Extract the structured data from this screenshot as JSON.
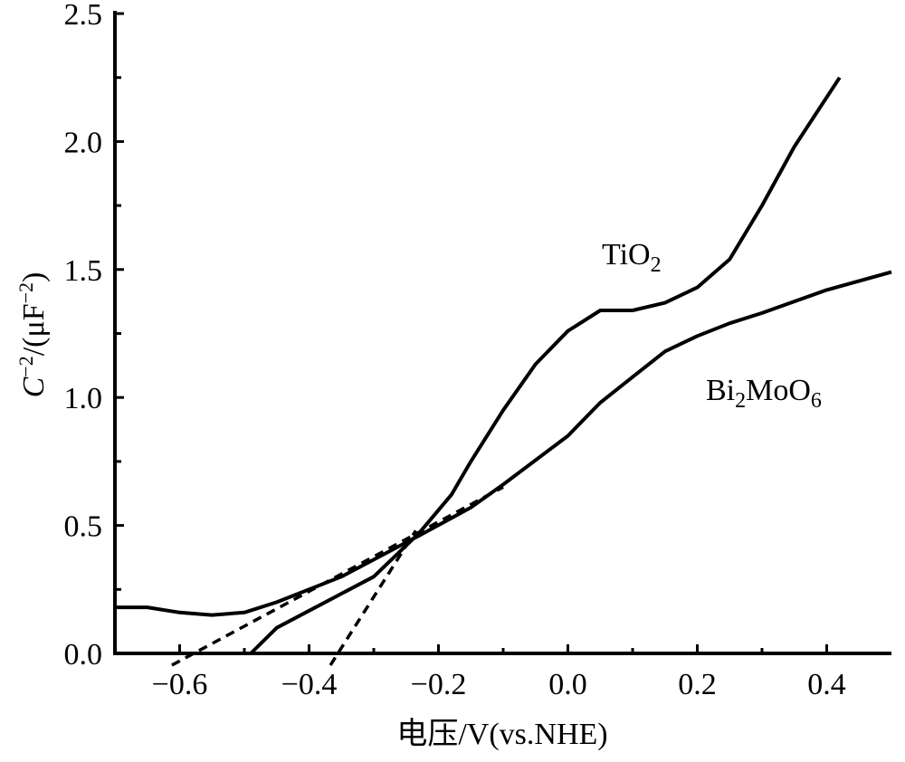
{
  "chart_data": {
    "type": "line",
    "title": "",
    "xlabel": "电压/V(vs.NHE)",
    "ylabel_parts": {
      "base": "C",
      "exp1": "−2",
      "mid": "/(μF",
      "exp2": "−2",
      "end": ")"
    },
    "ylabel": "C−2/(μF−2)",
    "xlim": [
      -0.7,
      0.5
    ],
    "ylim": [
      0,
      2.5
    ],
    "xticks": [
      -0.6,
      -0.4,
      -0.2,
      0.0,
      0.2,
      0.4
    ],
    "xtick_labels": [
      "−0.6",
      "−0.4",
      "−0.2",
      "0.0",
      "0.2",
      "0.4"
    ],
    "yticks": [
      0.0,
      0.5,
      1.0,
      1.5,
      2.0,
      2.5
    ],
    "ytick_labels": [
      "0.0",
      "0.5",
      "1.0",
      "1.5",
      "2.0",
      "2.5"
    ],
    "grid": false,
    "series": [
      {
        "name": "TiO2",
        "label_base": "TiO",
        "label_sub": "2",
        "style": "solid",
        "x": [
          -0.49,
          -0.45,
          -0.3,
          -0.23,
          -0.18,
          -0.15,
          -0.1,
          -0.05,
          0.0,
          0.05,
          0.1,
          0.15,
          0.2,
          0.25,
          0.3,
          0.35,
          0.42
        ],
        "y": [
          0.0,
          0.1,
          0.3,
          0.47,
          0.62,
          0.75,
          0.95,
          1.13,
          1.26,
          1.34,
          1.34,
          1.37,
          1.43,
          1.54,
          1.75,
          1.98,
          2.25
        ]
      },
      {
        "name": "Bi2MoO6",
        "label_parts": [
          "Bi",
          "2",
          "MoO",
          "6"
        ],
        "style": "solid",
        "x": [
          -0.7,
          -0.65,
          -0.6,
          -0.55,
          -0.5,
          -0.45,
          -0.35,
          -0.23,
          -0.15,
          -0.1,
          0.0,
          0.05,
          0.1,
          0.15,
          0.2,
          0.25,
          0.3,
          0.4,
          0.5
        ],
        "y": [
          0.18,
          0.18,
          0.16,
          0.15,
          0.16,
          0.2,
          0.3,
          0.46,
          0.57,
          0.66,
          0.85,
          0.98,
          1.08,
          1.18,
          1.24,
          1.29,
          1.33,
          1.42,
          1.49
        ]
      }
    ],
    "tangent_lines": [
      {
        "name": "Bi2MoO6 tangent",
        "style": "dashed",
        "x": [
          -0.612,
          -0.1
        ],
        "y": [
          -0.046,
          0.65
        ]
      },
      {
        "name": "TiO2 tangent",
        "style": "dashed",
        "x": [
          -0.367,
          -0.235
        ],
        "y": [
          -0.046,
          0.48
        ]
      }
    ]
  }
}
